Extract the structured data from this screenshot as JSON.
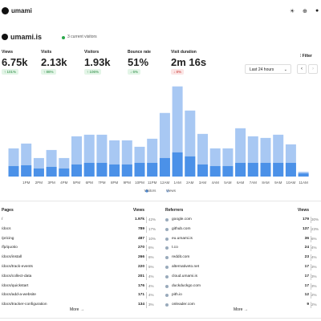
{
  "header": {
    "logo": "umami"
  },
  "site": {
    "name": "umami.is",
    "visitors": "3 current visitors"
  },
  "metrics": [
    {
      "label": "Views",
      "value": "6.75k",
      "change": "↑ 101%",
      "color": "green"
    },
    {
      "label": "Visits",
      "value": "2.13k",
      "change": "↑ 86%",
      "color": "green"
    },
    {
      "label": "Visitors",
      "value": "1.93k",
      "change": "↑ 106%",
      "color": "green"
    },
    {
      "label": "Bounce rate",
      "value": "51%",
      "change": "↓ 6%",
      "color": "green"
    },
    {
      "label": "Visit duration",
      "value": "2m 16s",
      "change": "↓ 8%",
      "color": "red"
    }
  ],
  "filter": "Filter",
  "range": "Last 24 hours",
  "chart": {
    "type": "bar",
    "categories": [
      null,
      "1PM",
      "2PM",
      "3PM",
      "4PM",
      "5PM",
      "6PM",
      "7PM",
      "8PM",
      "9PM",
      "10PM",
      "11PM",
      "12AM",
      "1AM",
      "2AM",
      "3AM",
      "4AM",
      "5AM",
      "6AM",
      "7AM",
      "8AM",
      "9AM",
      "10AM",
      "11AM"
    ],
    "series": [
      {
        "name": "Visitors",
        "color": "#4b91e8",
        "values": [
          78,
          84,
          60,
          72,
          60,
          90,
          102,
          102,
          90,
          90,
          102,
          102,
          138,
          180,
          150,
          90,
          78,
          78,
          102,
          102,
          102,
          102,
          102,
          24
        ]
      },
      {
        "name": "Views",
        "color": "#a8c8f3",
        "values": [
          210,
          246,
          138,
          198,
          138,
          300,
          312,
          312,
          270,
          270,
          222,
          282,
          474,
          672,
          492,
          318,
          210,
          210,
          360,
          300,
          288,
          312,
          240,
          36
        ]
      }
    ],
    "ylim": [
      0,
      700
    ]
  },
  "pages": {
    "title": "Pages",
    "column": "Views",
    "more": "More →",
    "rows": [
      [
        "/",
        "1.97k",
        "42%"
      ],
      [
        "/docs",
        "789",
        "17%"
      ],
      [
        "/pricing",
        "487",
        "10%"
      ],
      [
        "/fp/quotio",
        "270",
        "6%"
      ],
      [
        "/docs/install",
        "266",
        "6%"
      ],
      [
        "/docs/track-events",
        "220",
        "5%"
      ],
      [
        "/docs/collect-data",
        "201",
        "4%"
      ],
      [
        "/docs/quickstart",
        "176",
        "4%"
      ],
      [
        "/docs/add-a-website",
        "171",
        "4%"
      ],
      [
        "/docs/tracker-configuration",
        "134",
        "3%"
      ]
    ]
  },
  "referrers": {
    "title": "Referrers",
    "column": "Views",
    "more": "More →",
    "rows": [
      [
        "google.com",
        "179",
        "30%"
      ],
      [
        "github.com",
        "137",
        "23%"
      ],
      [
        "eu.umami.is",
        "36",
        "6%"
      ],
      [
        "t.co",
        "24",
        "4%"
      ],
      [
        "reddit.com",
        "23",
        "4%"
      ],
      [
        "alternativeto.net",
        "17",
        "3%"
      ],
      [
        "cloud.umami.is",
        "17",
        "3%"
      ],
      [
        "duckduckgo.com",
        "17",
        "3%"
      ],
      [
        "pith.io",
        "12",
        "2%"
      ],
      [
        "onleader.com",
        "9",
        "2%"
      ]
    ]
  }
}
